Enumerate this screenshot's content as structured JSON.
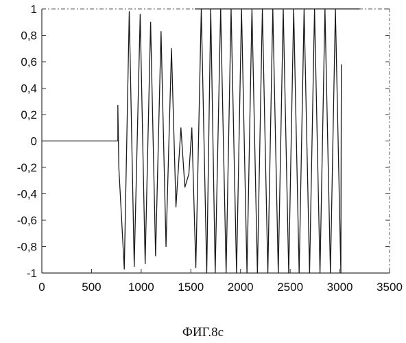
{
  "chart_data": {
    "type": "line",
    "title": "",
    "xlabel": "",
    "ylabel": "",
    "xlim": [
      0,
      3500
    ],
    "ylim": [
      -1,
      1
    ],
    "grid": false,
    "legend": "none",
    "x_ticks": [
      0,
      500,
      1000,
      1500,
      2000,
      2500,
      3000,
      3500
    ],
    "x_tick_labels": [
      "0",
      "500",
      "1000",
      "1500",
      "2000",
      "2500",
      "3000",
      "3500"
    ],
    "y_ticks": [
      1,
      0.8,
      0.6,
      0.4,
      0.2,
      0,
      -0.2,
      -0.4,
      -0.6,
      -0.8,
      -1
    ],
    "y_tick_labels": [
      "1",
      "0,8",
      "0,6",
      "0,4",
      "0,2",
      "0",
      "-0,2",
      "-0,4",
      "-0,6",
      "-0,8",
      "-1"
    ],
    "series": [
      {
        "color": "#1a1a1a",
        "x": [
          0,
          765,
          765,
          772,
          775,
          830,
          880,
          930,
          990,
          1040,
          1095,
          1145,
          1200,
          1250,
          1305,
          1350,
          1400,
          1440,
          1480,
          1510,
          1550,
          1605,
          1660,
          1700,
          1745,
          1800,
          1855,
          1905,
          1960,
          2010,
          2065,
          2115,
          2170,
          2220,
          2275,
          2325,
          2380,
          2430,
          2485,
          2535,
          2590,
          2640,
          2695,
          2745,
          2800,
          2850,
          2905,
          2955,
          3010,
          3015
        ],
        "y": [
          0,
          0,
          0.27,
          -0.05,
          -0.2,
          -0.97,
          0.98,
          -0.95,
          0.96,
          -0.93,
          0.9,
          -0.87,
          0.83,
          -0.8,
          0.7,
          -0.5,
          0.1,
          -0.35,
          -0.25,
          0.1,
          -0.96,
          1,
          -1,
          1,
          -1,
          1,
          -1,
          1,
          -1,
          1,
          -1,
          1,
          -1,
          1,
          -1,
          1,
          -1,
          1,
          -1,
          1,
          -1,
          1,
          -1,
          1,
          -1,
          1,
          -1,
          1,
          -1,
          0.58
        ]
      },
      {
        "color": "#555555",
        "x": [
          1540,
          3200
        ],
        "y": [
          1,
          1
        ]
      }
    ]
  },
  "caption": "ФИГ.8с"
}
